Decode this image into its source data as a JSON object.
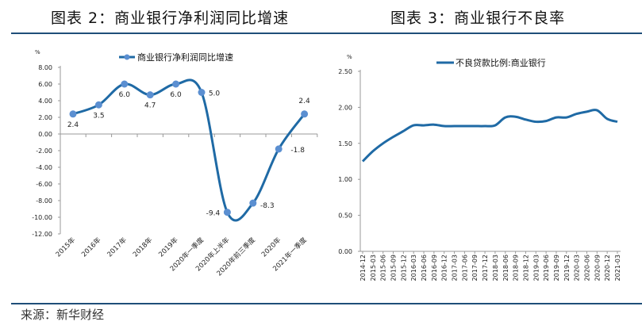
{
  "header": {
    "left_title": "图表 2：商业银行净利润同比增速",
    "right_title": "图表 3：商业银行不良率"
  },
  "footer": {
    "source": "来源：新华财经"
  },
  "colors": {
    "line": "#1f6aa5",
    "marker": "#5b8fd1",
    "rule": "#1f4e79"
  },
  "chart_data": [
    {
      "type": "line",
      "title": "",
      "ylabel": "%",
      "legend": "商业银行净利润同比增速",
      "legend_placement": "top",
      "categories": [
        "2015年",
        "2016年",
        "2017年",
        "2018年",
        "2019年",
        "2020年一季度",
        "2020年上半年",
        "2020年前三季度",
        "2020年",
        "2021年一季度"
      ],
      "values": [
        2.4,
        3.5,
        6.0,
        4.7,
        6.0,
        5.0,
        -9.4,
        -8.3,
        -1.8,
        2.4
      ],
      "data_labels": [
        "2.4",
        "3.5",
        "6.0",
        "4.7",
        "6.0",
        "5.0",
        "-9.4",
        "-8.3",
        "-1.8",
        "2.4"
      ],
      "ylim": [
        -12,
        8
      ],
      "yticks": [
        "8.00",
        "6.00",
        "4.00",
        "2.00",
        "0.00",
        "-2.00",
        "-4.00",
        "-6.00",
        "-8.00",
        "-10.00",
        "-12.00"
      ],
      "grid": false
    },
    {
      "type": "line",
      "title": "",
      "ylabel": "%",
      "legend": "不良贷款比例:商业银行",
      "legend_placement": "top",
      "categories": [
        "2014-12",
        "2015-03",
        "2015-06",
        "2015-09",
        "2015-12",
        "2016-03",
        "2016-06",
        "2016-09",
        "2016-12",
        "2017-03",
        "2017-06",
        "2017-09",
        "2017-12",
        "2018-03",
        "2018-06",
        "2018-09",
        "2018-12",
        "2019-03",
        "2019-06",
        "2019-09",
        "2019-12",
        "2020-03",
        "2020-06",
        "2020-09",
        "2020-12",
        "2021-03"
      ],
      "values": [
        1.25,
        1.39,
        1.5,
        1.59,
        1.67,
        1.75,
        1.75,
        1.76,
        1.74,
        1.74,
        1.74,
        1.74,
        1.74,
        1.75,
        1.86,
        1.87,
        1.83,
        1.8,
        1.81,
        1.86,
        1.86,
        1.91,
        1.94,
        1.96,
        1.84,
        1.8
      ],
      "ylim": [
        0,
        2.5
      ],
      "yticks": [
        "2.50",
        "2.00",
        "1.50",
        "1.00",
        "0.50",
        "0.00"
      ],
      "grid": false
    }
  ]
}
